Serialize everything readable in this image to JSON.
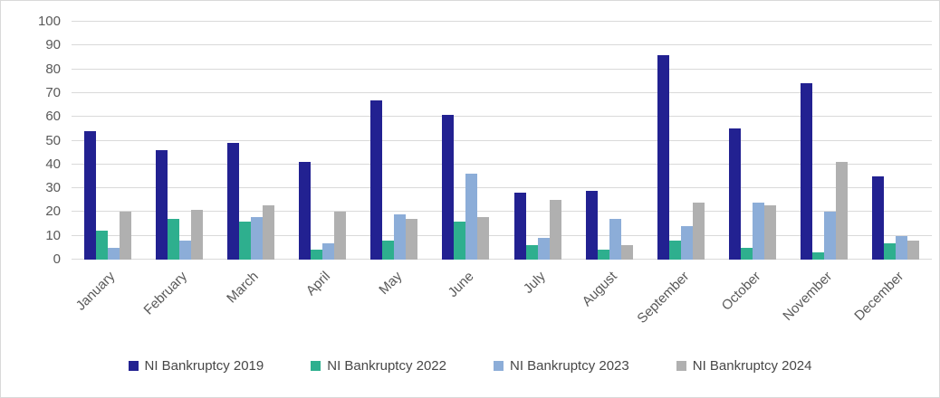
{
  "chart_data": {
    "type": "bar",
    "title": "",
    "categories": [
      "January",
      "February",
      "March",
      "April",
      "May",
      "June",
      "July",
      "August",
      "September",
      "October",
      "November",
      "December"
    ],
    "series": [
      {
        "name": "NI Bankruptcy 2019",
        "color": "#222191",
        "values": [
          54,
          46,
          49,
          41,
          67,
          61,
          28,
          29,
          86,
          55,
          74,
          35
        ]
      },
      {
        "name": "NI Bankruptcy 2022",
        "color": "#2EAF8E",
        "values": [
          12,
          17,
          16,
          4,
          8,
          16,
          6,
          4,
          8,
          5,
          3,
          7
        ]
      },
      {
        "name": "NI Bankruptcy 2023",
        "color": "#8CADD8",
        "values": [
          5,
          8,
          18,
          7,
          19,
          36,
          9,
          17,
          14,
          24,
          20,
          10
        ]
      },
      {
        "name": "NI Bankruptcy 2024",
        "color": "#B0B0B0",
        "values": [
          20,
          21,
          23,
          20,
          17,
          18,
          25,
          6,
          24,
          23,
          41,
          8
        ]
      }
    ],
    "xlabel": "",
    "ylabel": "",
    "ylim": [
      0,
      100
    ],
    "ytick_step": 10,
    "y_tick_labels": [
      "0",
      "10",
      "20",
      "30",
      "40",
      "50",
      "60",
      "70",
      "80",
      "90",
      "100"
    ],
    "grid": true,
    "gridline_color": "#D9D9D9",
    "axis_label_color": "#595959",
    "legend_position": "bottom"
  }
}
